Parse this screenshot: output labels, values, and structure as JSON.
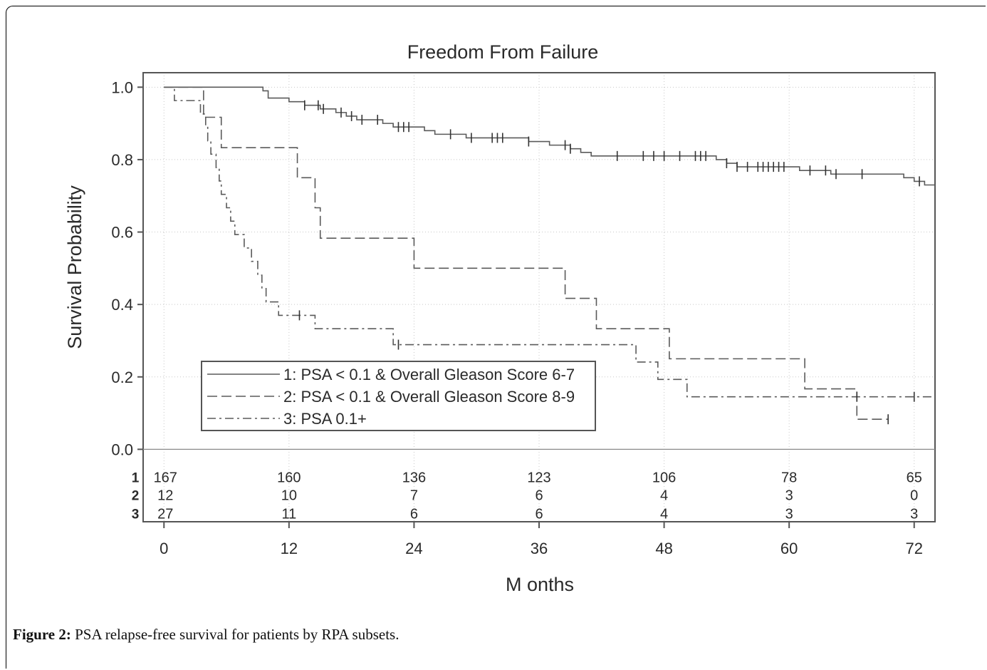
{
  "figure": {
    "label": "Figure 2:",
    "caption": "PSA relapse-free survival for patients by RPA subsets."
  },
  "colors": {
    "axis": "#555555",
    "grid": "#c8c8c8",
    "line": "#5a5a5a",
    "text": "#2a2a2a"
  },
  "chart_data": {
    "type": "line",
    "title": "Freedom From Failure",
    "xlabel": "M onths",
    "ylabel": "Survival Probability",
    "xlim": [
      -2,
      74
    ],
    "ylim": [
      -0.2,
      1.04
    ],
    "x_ticks": [
      0,
      12,
      24,
      36,
      48,
      60,
      72
    ],
    "y_ticks": [
      0.0,
      0.2,
      0.4,
      0.6,
      0.8,
      1.0
    ],
    "y_tick_labels": [
      "0.0",
      "0.2",
      "0.4",
      "0.6",
      "0.8",
      "1.0"
    ],
    "grid": true,
    "legend_position": "bottom-left",
    "series": [
      {
        "name": "1: PSA < 0.1 & Overall Gleason Score 6-7",
        "style": "solid",
        "steps": [
          [
            0,
            1.0
          ],
          [
            9.5,
            0.99
          ],
          [
            10,
            0.97
          ],
          [
            12,
            0.96
          ],
          [
            13.5,
            0.95
          ],
          [
            15,
            0.94
          ],
          [
            16.5,
            0.93
          ],
          [
            17.5,
            0.92
          ],
          [
            18.5,
            0.91
          ],
          [
            21,
            0.9
          ],
          [
            22,
            0.89
          ],
          [
            25,
            0.88
          ],
          [
            26,
            0.87
          ],
          [
            29,
            0.86
          ],
          [
            35,
            0.85
          ],
          [
            37,
            0.84
          ],
          [
            39,
            0.83
          ],
          [
            40,
            0.82
          ],
          [
            41,
            0.81
          ],
          [
            53,
            0.8
          ],
          [
            54,
            0.79
          ],
          [
            55,
            0.78
          ],
          [
            61,
            0.77
          ],
          [
            64,
            0.76
          ],
          [
            71,
            0.75
          ],
          [
            72,
            0.74
          ],
          [
            73,
            0.73
          ],
          [
            74,
            0.72
          ]
        ],
        "censored": [
          13.5,
          14.8,
          15.3,
          17,
          18,
          19,
          20.5,
          22.5,
          23,
          23.5,
          27.5,
          29.5,
          31.5,
          32,
          32.5,
          35,
          38.5,
          39,
          43.5,
          46,
          47,
          48,
          49.5,
          51,
          51.5,
          52,
          54,
          55,
          56,
          57,
          57.5,
          58,
          58.5,
          59,
          59.5,
          62,
          63.5,
          64.5,
          67,
          72.5
        ]
      },
      {
        "name": "2: PSA < 0.1 & Overall Gleason Score 8-9",
        "style": "dashed",
        "steps": [
          [
            0,
            1.0
          ],
          [
            3.8,
            0.917
          ],
          [
            5.5,
            0.833
          ],
          [
            12.8,
            0.75
          ],
          [
            14.5,
            0.667
          ],
          [
            15,
            0.583
          ],
          [
            24,
            0.5
          ],
          [
            38.5,
            0.417
          ],
          [
            41.5,
            0.333
          ],
          [
            48.5,
            0.25
          ],
          [
            61.5,
            0.167
          ],
          [
            66.5,
            0.083
          ],
          [
            69.5,
            0.083
          ]
        ],
        "censored": [
          69.5
        ]
      },
      {
        "name": "3: PSA 0.1+",
        "style": "dashdot",
        "steps": [
          [
            0,
            1.0
          ],
          [
            1,
            0.963
          ],
          [
            3.5,
            0.926
          ],
          [
            4,
            0.889
          ],
          [
            4.2,
            0.852
          ],
          [
            4.5,
            0.815
          ],
          [
            5,
            0.778
          ],
          [
            5.3,
            0.741
          ],
          [
            5.5,
            0.704
          ],
          [
            6,
            0.667
          ],
          [
            6.4,
            0.63
          ],
          [
            6.8,
            0.593
          ],
          [
            7.7,
            0.556
          ],
          [
            8.4,
            0.519
          ],
          [
            9,
            0.481
          ],
          [
            9.4,
            0.444
          ],
          [
            9.8,
            0.407
          ],
          [
            11,
            0.37
          ],
          [
            14.5,
            0.333
          ],
          [
            22,
            0.289
          ],
          [
            45.3,
            0.241
          ],
          [
            47.4,
            0.193
          ],
          [
            50.2,
            0.145
          ],
          [
            74,
            0.145
          ]
        ],
        "censored": [
          13,
          22.5,
          66.5,
          72
        ]
      }
    ],
    "risk_table": {
      "timepoints": [
        0,
        12,
        24,
        36,
        48,
        60,
        72
      ],
      "rows": [
        {
          "label": "1",
          "values": [
            "167",
            "160",
            "136",
            "123",
            "106",
            "78",
            "65"
          ]
        },
        {
          "label": "2",
          "values": [
            "12",
            "10",
            "7",
            "6",
            "4",
            "3",
            "0"
          ]
        },
        {
          "label": "3",
          "values": [
            "27",
            "11",
            "6",
            "6",
            "4",
            "3",
            "3"
          ]
        }
      ]
    }
  }
}
